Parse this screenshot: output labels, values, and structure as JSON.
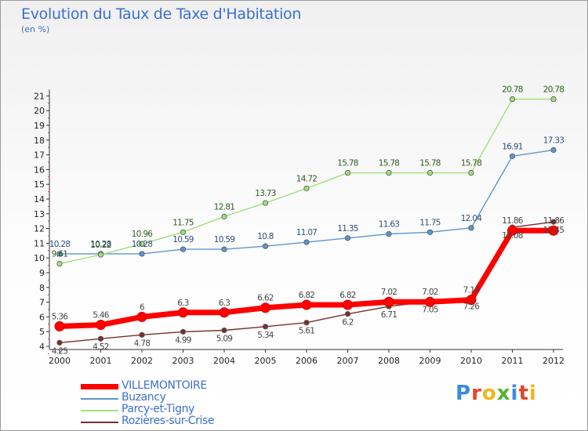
{
  "header": {
    "title": "Evolution du Taux de Taxe d'Habitation",
    "unit": "(en %)"
  },
  "brand": {
    "text": "Proxiti",
    "colors": [
      "#3a8be0",
      "#e0472a",
      "#f2b61c",
      "#55b52e",
      "#3a8be0",
      "#e0472a",
      "#f2b61c"
    ]
  },
  "chart_data": {
    "type": "line",
    "title": "Evolution du Taux de Taxe d'Habitation",
    "ylabel": "(en %)",
    "xlabel": "",
    "x": [
      "2000",
      "2001",
      "2002",
      "2003",
      "2004",
      "2005",
      "2006",
      "2007",
      "2008",
      "2009",
      "2010",
      "2011",
      "2012"
    ],
    "ylim": [
      4,
      21
    ],
    "yticks": [
      4,
      5,
      6,
      7,
      8,
      9,
      10,
      11,
      12,
      13,
      14,
      15,
      16,
      17,
      18,
      19,
      20,
      21
    ],
    "grid": false,
    "legend_position": "bottom-left",
    "series": [
      {
        "name": "VILLEMONTOIRE",
        "color": "#ff0000",
        "values": [
          5.36,
          5.46,
          6,
          6.3,
          6.3,
          6.62,
          6.82,
          6.82,
          7.02,
          7.02,
          7.16,
          11.86,
          11.86
        ],
        "labels": [
          "5.36",
          "5.46",
          "6",
          "6.3",
          "6.3",
          "6.62",
          "6.82",
          "6.82",
          "7.02",
          "7.02",
          "7.16",
          "11.86",
          "11.86"
        ]
      },
      {
        "name": "Buzancy",
        "color": "#5b97d0",
        "values": [
          10.28,
          10.28,
          10.28,
          10.59,
          10.59,
          10.8,
          11.07,
          11.35,
          11.63,
          11.75,
          12.04,
          16.91,
          17.33
        ],
        "labels": [
          "10.28",
          "10.28",
          "10.28",
          "10.59",
          "10.59",
          "10.8",
          "11.07",
          "11.35",
          "11.63",
          "11.75",
          "12.04",
          "16.91",
          "17.33"
        ]
      },
      {
        "name": "Parcy-et-Tigny",
        "color": "#9fe07a",
        "values": [
          9.61,
          10.22,
          10.96,
          11.75,
          12.81,
          13.73,
          14.72,
          15.78,
          15.78,
          15.78,
          15.78,
          20.78,
          20.78
        ],
        "labels": [
          "9.61",
          "10.22",
          "10.96",
          "11.75",
          "12.81",
          "13.73",
          "14.72",
          "15.78",
          "15.78",
          "15.78",
          "15.78",
          "20.78",
          "20.78"
        ]
      },
      {
        "name": "Rozières-sur-Crise",
        "color": "#7a2e2e",
        "values": [
          4.25,
          4.52,
          4.78,
          4.99,
          5.09,
          5.34,
          5.61,
          6.2,
          6.71,
          7.05,
          7.26,
          12.08,
          12.45
        ],
        "labels": [
          "4.25",
          "4.52",
          "4.78",
          "4.99",
          "5.09",
          "5.34",
          "5.61",
          "6.2",
          "6.71",
          "7.05",
          "7.26",
          "12.08",
          "12.45"
        ]
      }
    ]
  }
}
